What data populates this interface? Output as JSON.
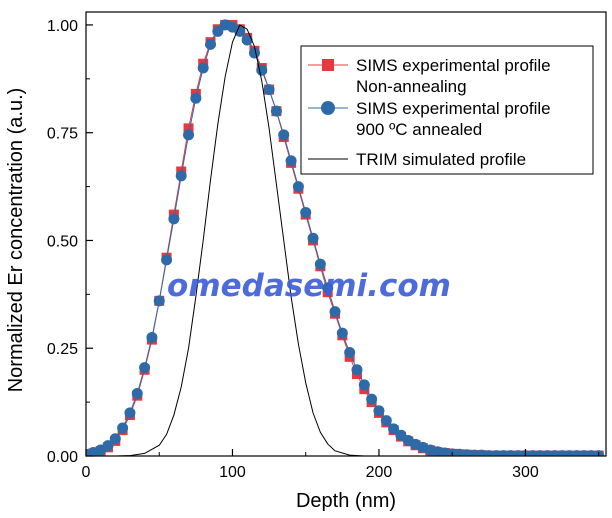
{
  "chart_data": {
    "type": "scatter",
    "xlabel": "Depth (nm)",
    "ylabel": "Normalized Er concentration (a.u.)",
    "xlim": [
      0,
      355
    ],
    "ylim": [
      0,
      1.03
    ],
    "x_ticks": [
      0,
      100,
      200,
      300
    ],
    "y_ticks": [
      0.0,
      0.25,
      0.5,
      0.75,
      1.0
    ],
    "x_tick_labels": [
      "0",
      "100",
      "200",
      "300"
    ],
    "y_tick_labels": [
      "0.00",
      "0.25",
      "0.50",
      "0.75",
      "1.00"
    ],
    "grid": false,
    "legend_position": "top-right",
    "series": [
      {
        "name_lines": [
          "SIMS experimental profile",
          "Non-annealing"
        ],
        "marker": "square",
        "color": "#e8383d",
        "x": [
          0,
          5,
          10,
          15,
          20,
          25,
          30,
          35,
          40,
          45,
          50,
          55,
          60,
          65,
          70,
          75,
          80,
          85,
          90,
          95,
          100,
          105,
          110,
          115,
          120,
          125,
          130,
          135,
          140,
          145,
          150,
          155,
          160,
          165,
          170,
          175,
          180,
          185,
          190,
          195,
          200,
          205,
          210,
          215,
          220,
          225,
          230,
          235,
          240,
          245,
          250,
          255,
          260,
          265,
          270,
          275,
          280,
          285,
          290,
          295,
          300,
          305,
          310,
          315,
          320,
          325,
          330,
          335,
          340,
          345,
          350
        ],
        "y": [
          0.003,
          0.006,
          0.011,
          0.02,
          0.035,
          0.06,
          0.095,
          0.14,
          0.2,
          0.27,
          0.36,
          0.46,
          0.56,
          0.66,
          0.76,
          0.84,
          0.91,
          0.96,
          0.99,
          1.0,
          1.0,
          0.99,
          0.97,
          0.94,
          0.9,
          0.85,
          0.8,
          0.74,
          0.68,
          0.62,
          0.56,
          0.5,
          0.44,
          0.38,
          0.33,
          0.28,
          0.23,
          0.19,
          0.155,
          0.125,
          0.1,
          0.078,
          0.06,
          0.045,
          0.034,
          0.025,
          0.018,
          0.013,
          0.009,
          0.007,
          0.005,
          0.004,
          0.003,
          0.002,
          0.002,
          0.001,
          0.001,
          0.001,
          0.001,
          0.001,
          0.001,
          0.001,
          0.001,
          0.001,
          0.001,
          0.001,
          0.001,
          0.001,
          0.001,
          0.001,
          0.001
        ]
      },
      {
        "name_lines": [
          "SIMS experimental profile",
          "900 ºC annealed"
        ],
        "marker": "circle",
        "color": "#2f6aa8",
        "x": [
          0,
          5,
          10,
          15,
          20,
          25,
          30,
          35,
          40,
          45,
          50,
          55,
          60,
          65,
          70,
          75,
          80,
          85,
          90,
          95,
          100,
          105,
          110,
          115,
          120,
          125,
          130,
          135,
          140,
          145,
          150,
          155,
          160,
          165,
          170,
          175,
          180,
          185,
          190,
          195,
          200,
          205,
          210,
          215,
          220,
          225,
          230,
          235,
          240,
          245,
          250,
          255,
          260,
          265,
          270,
          275,
          280,
          285,
          290,
          295,
          300,
          305,
          310,
          315,
          320,
          325,
          330,
          335,
          340,
          345,
          350
        ],
        "y": [
          0.004,
          0.008,
          0.014,
          0.024,
          0.04,
          0.065,
          0.1,
          0.145,
          0.205,
          0.275,
          0.36,
          0.455,
          0.55,
          0.65,
          0.745,
          0.83,
          0.9,
          0.955,
          0.985,
          1.0,
          0.995,
          0.985,
          0.965,
          0.935,
          0.895,
          0.85,
          0.8,
          0.745,
          0.685,
          0.625,
          0.565,
          0.505,
          0.445,
          0.39,
          0.335,
          0.285,
          0.24,
          0.2,
          0.165,
          0.132,
          0.105,
          0.082,
          0.063,
          0.048,
          0.036,
          0.027,
          0.02,
          0.014,
          0.01,
          0.007,
          0.005,
          0.004,
          0.003,
          0.002,
          0.002,
          0.001,
          0.001,
          0.001,
          0.001,
          0.001,
          0.001,
          0.001,
          0.001,
          0.001,
          0.001,
          0.001,
          0.001,
          0.001,
          0.001,
          0.001,
          0.001
        ]
      },
      {
        "name_lines": [
          "TRIM simulated profile"
        ],
        "marker": "line",
        "color": "#000000",
        "x": [
          0,
          10,
          20,
          30,
          40,
          50,
          55,
          60,
          65,
          70,
          75,
          80,
          85,
          90,
          95,
          100,
          105,
          110,
          115,
          120,
          125,
          130,
          135,
          140,
          145,
          150,
          155,
          160,
          165,
          170,
          180,
          190,
          200,
          225,
          250,
          300,
          355
        ],
        "y": [
          0,
          0,
          0,
          0.001,
          0.006,
          0.025,
          0.05,
          0.095,
          0.16,
          0.25,
          0.37,
          0.5,
          0.64,
          0.77,
          0.88,
          0.96,
          1.0,
          0.99,
          0.95,
          0.87,
          0.76,
          0.63,
          0.5,
          0.37,
          0.26,
          0.17,
          0.1,
          0.055,
          0.028,
          0.012,
          0.002,
          0,
          0,
          0,
          0,
          0,
          0
        ]
      }
    ]
  },
  "watermark": "omedasemi.com"
}
